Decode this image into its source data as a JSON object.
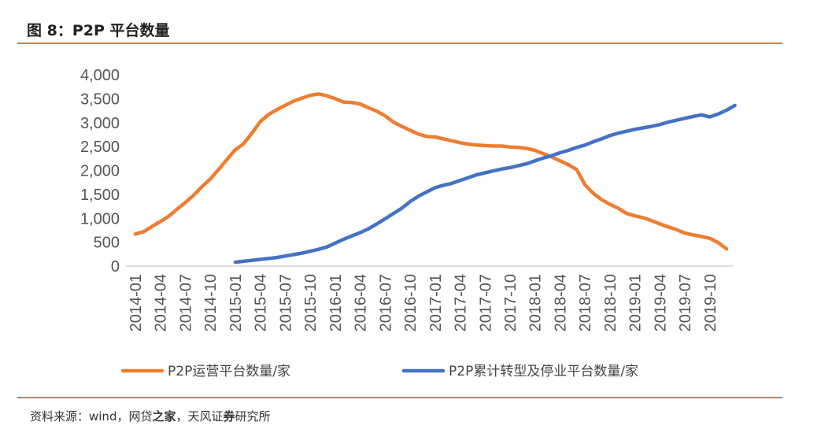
{
  "header": {
    "title": "图 8：P2P 平台数量"
  },
  "footer": {
    "source_label": "资料来源：wind，网贷",
    "source_bold": "之家",
    "source_rest": "，天风证",
    "source_bold2": "券",
    "source_end": "研究所"
  },
  "chart_data": {
    "type": "line",
    "title": "",
    "xlabel": "",
    "ylabel": "",
    "ylim": [
      0,
      4000
    ],
    "yticks": [
      "0",
      "500",
      "1,000",
      "1,500",
      "2,000",
      "2,500",
      "3,000",
      "3,500",
      "4,000"
    ],
    "ytick_values": [
      0,
      500,
      1000,
      1500,
      2000,
      2500,
      3000,
      3500,
      4000
    ],
    "x_range": [
      "2014-01",
      "2019-12"
    ],
    "xticks": [
      "2014-01",
      "2014-04",
      "2014-07",
      "2014-10",
      "2015-01",
      "2015-04",
      "2015-07",
      "2015-10",
      "2016-01",
      "2016-04",
      "2016-07",
      "2016-10",
      "2017-01",
      "2017-04",
      "2017-07",
      "2017-10",
      "2018-01",
      "2018-04",
      "2018-07",
      "2018-10",
      "2019-01",
      "2019-04",
      "2019-07",
      "2019-10"
    ],
    "grid": false,
    "legend_position": "bottom",
    "colors": {
      "operating": "#ED7D31",
      "closed": "#4472C4"
    },
    "series": [
      {
        "name": "P2P运营平台数量/家",
        "start": "2014-01",
        "values": [
          670,
          720,
          830,
          930,
          1040,
          1190,
          1330,
          1480,
          1660,
          1820,
          2020,
          2230,
          2430,
          2560,
          2780,
          3020,
          3170,
          3270,
          3360,
          3450,
          3510,
          3570,
          3600,
          3560,
          3500,
          3430,
          3420,
          3390,
          3310,
          3240,
          3140,
          3010,
          2920,
          2840,
          2760,
          2710,
          2700,
          2660,
          2620,
          2580,
          2550,
          2530,
          2520,
          2510,
          2510,
          2490,
          2480,
          2460,
          2420,
          2350,
          2280,
          2200,
          2120,
          2020,
          1700,
          1520,
          1390,
          1290,
          1210,
          1100,
          1050,
          1010,
          950,
          880,
          820,
          760,
          690,
          650,
          620,
          580,
          490,
          360
        ]
      },
      {
        "name": "P2P累计转型及停业平台数量/家",
        "start": "2015-01",
        "values": [
          80,
          100,
          120,
          140,
          160,
          180,
          210,
          240,
          270,
          310,
          350,
          400,
          480,
          560,
          630,
          700,
          780,
          880,
          990,
          1100,
          1210,
          1350,
          1460,
          1550,
          1640,
          1690,
          1730,
          1790,
          1850,
          1910,
          1950,
          1990,
          2030,
          2060,
          2100,
          2140,
          2200,
          2260,
          2310,
          2370,
          2420,
          2480,
          2530,
          2600,
          2660,
          2730,
          2780,
          2820,
          2860,
          2890,
          2920,
          2960,
          3010,
          3050,
          3090,
          3130,
          3160,
          3120,
          3180,
          3260,
          3360
        ]
      }
    ]
  }
}
